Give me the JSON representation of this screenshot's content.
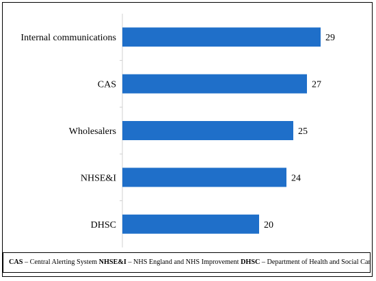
{
  "chart_data": {
    "type": "bar",
    "orientation": "horizontal",
    "categories": [
      "Internal communications",
      "CAS",
      "Wholesalers",
      "NHSE&I",
      "DHSC"
    ],
    "values": [
      29,
      27,
      25,
      24,
      20
    ],
    "title": "",
    "xlabel": "",
    "ylabel": "",
    "xlim": [
      0,
      30
    ],
    "grid": false,
    "bar_color": "#1f6fc9",
    "data_labels": true
  },
  "footnote": {
    "items": [
      {
        "abbr": "CAS",
        "text": " – Central Alerting System "
      },
      {
        "abbr": "NHSE&I",
        "text": " – NHS England and NHS Improvement "
      },
      {
        "abbr": "DHSC",
        "text": " – Department of Health and Social Care"
      }
    ]
  }
}
